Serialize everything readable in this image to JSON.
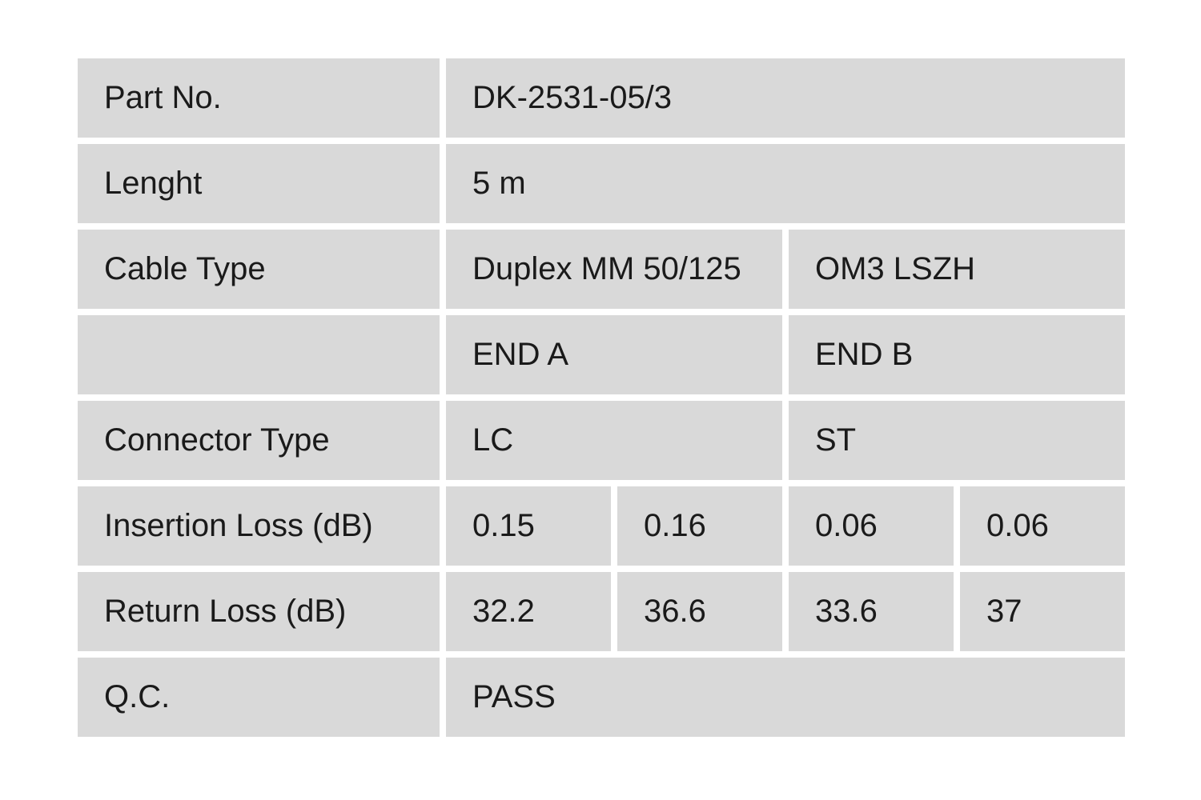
{
  "table": {
    "colors": {
      "cell_bg": "#d9d9d9",
      "page_bg": "#ffffff",
      "text": "#1a1a1a"
    },
    "rows": {
      "part_no": {
        "label": "Part No.",
        "value": "DK-2531-05/3"
      },
      "length": {
        "label": "Lenght",
        "value": "5 m"
      },
      "cable_type": {
        "label": "Cable Type",
        "value1": "Duplex MM 50/125",
        "value2": "OM3 LSZH"
      },
      "end_header": {
        "label": "",
        "end_a": "END A",
        "end_b": "END B"
      },
      "connector_type": {
        "label": "Connector Type",
        "end_a": "LC",
        "end_b": "ST"
      },
      "insertion_loss": {
        "label": "Insertion Loss (dB)",
        "end_a_1": "0.15",
        "end_a_2": "0.16",
        "end_b_1": "0.06",
        "end_b_2": "0.06"
      },
      "return_loss": {
        "label": "Return Loss (dB)",
        "end_a_1": "32.2",
        "end_a_2": "36.6",
        "end_b_1": "33.6",
        "end_b_2": "37"
      },
      "qc": {
        "label": "Q.C.",
        "value": "PASS"
      }
    }
  }
}
